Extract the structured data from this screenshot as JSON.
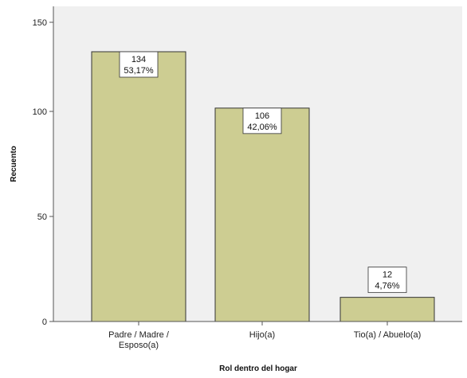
{
  "chart_data": {
    "type": "bar",
    "categories": [
      "Padre / Madre / Esposo(a)",
      "Hijo(a)",
      "Tio(a) / Abuelo(a)"
    ],
    "category_label_lines": [
      [
        "Padre / Madre /",
        "Esposo(a)"
      ],
      [
        "Hijo(a)"
      ],
      [
        "Tio(a) / Abuelo(a)"
      ]
    ],
    "values": [
      134,
      106,
      12
    ],
    "data_labels": [
      {
        "count": "134",
        "percent": "53,17%"
      },
      {
        "count": "106",
        "percent": "42,06%"
      },
      {
        "count": "12",
        "percent": "4,76%"
      }
    ],
    "xlabel": "Rol dentro del hogar",
    "ylabel": "Recuento",
    "ylim": [
      0,
      150
    ],
    "yticks": [
      0,
      50,
      100,
      150
    ],
    "grid": false,
    "colors": {
      "plot_background": "#f0f0f0",
      "bar_fill": "#cdcd92",
      "bar_stroke": "#333333",
      "axis": "#555555"
    }
  }
}
